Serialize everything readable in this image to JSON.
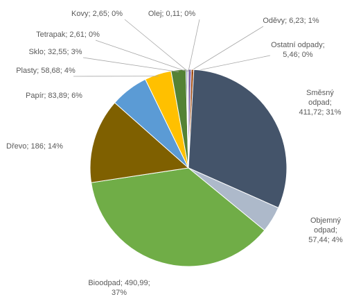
{
  "chart_data": {
    "type": "pie",
    "values": [
      6.23,
      5.46,
      411.72,
      57.44,
      490.99,
      186,
      83.89,
      58.68,
      32.55,
      2.61,
      2.65,
      0.11
    ],
    "value_labels": [
      "Oděvy; 6,23; 1%",
      "Ostatní odpady; 5,46; 0%",
      "Směsný odpad; 411,72; 31%",
      "Objemný odpad; 57,44; 4%",
      "Bioodpad; 490,99; 37%",
      "Dřevo; 186; 14%",
      "Papír; 83,89; 6%",
      "Plasty; 58,68; 4%",
      "Sklo; 32,55; 3%",
      "Tetrapak; 2,61; 0%",
      "Kovy; 2,65; 0%",
      "Olej; 0,11; 0%"
    ],
    "colors": [
      "#7a5ea8",
      "#9e480e",
      "#44546a",
      "#adb9ca",
      "#70ad47",
      "#7f6000",
      "#5b9bd5",
      "#ffc000",
      "#548235",
      "#264478",
      "#a5a5a5",
      "#ed7d31"
    ]
  }
}
